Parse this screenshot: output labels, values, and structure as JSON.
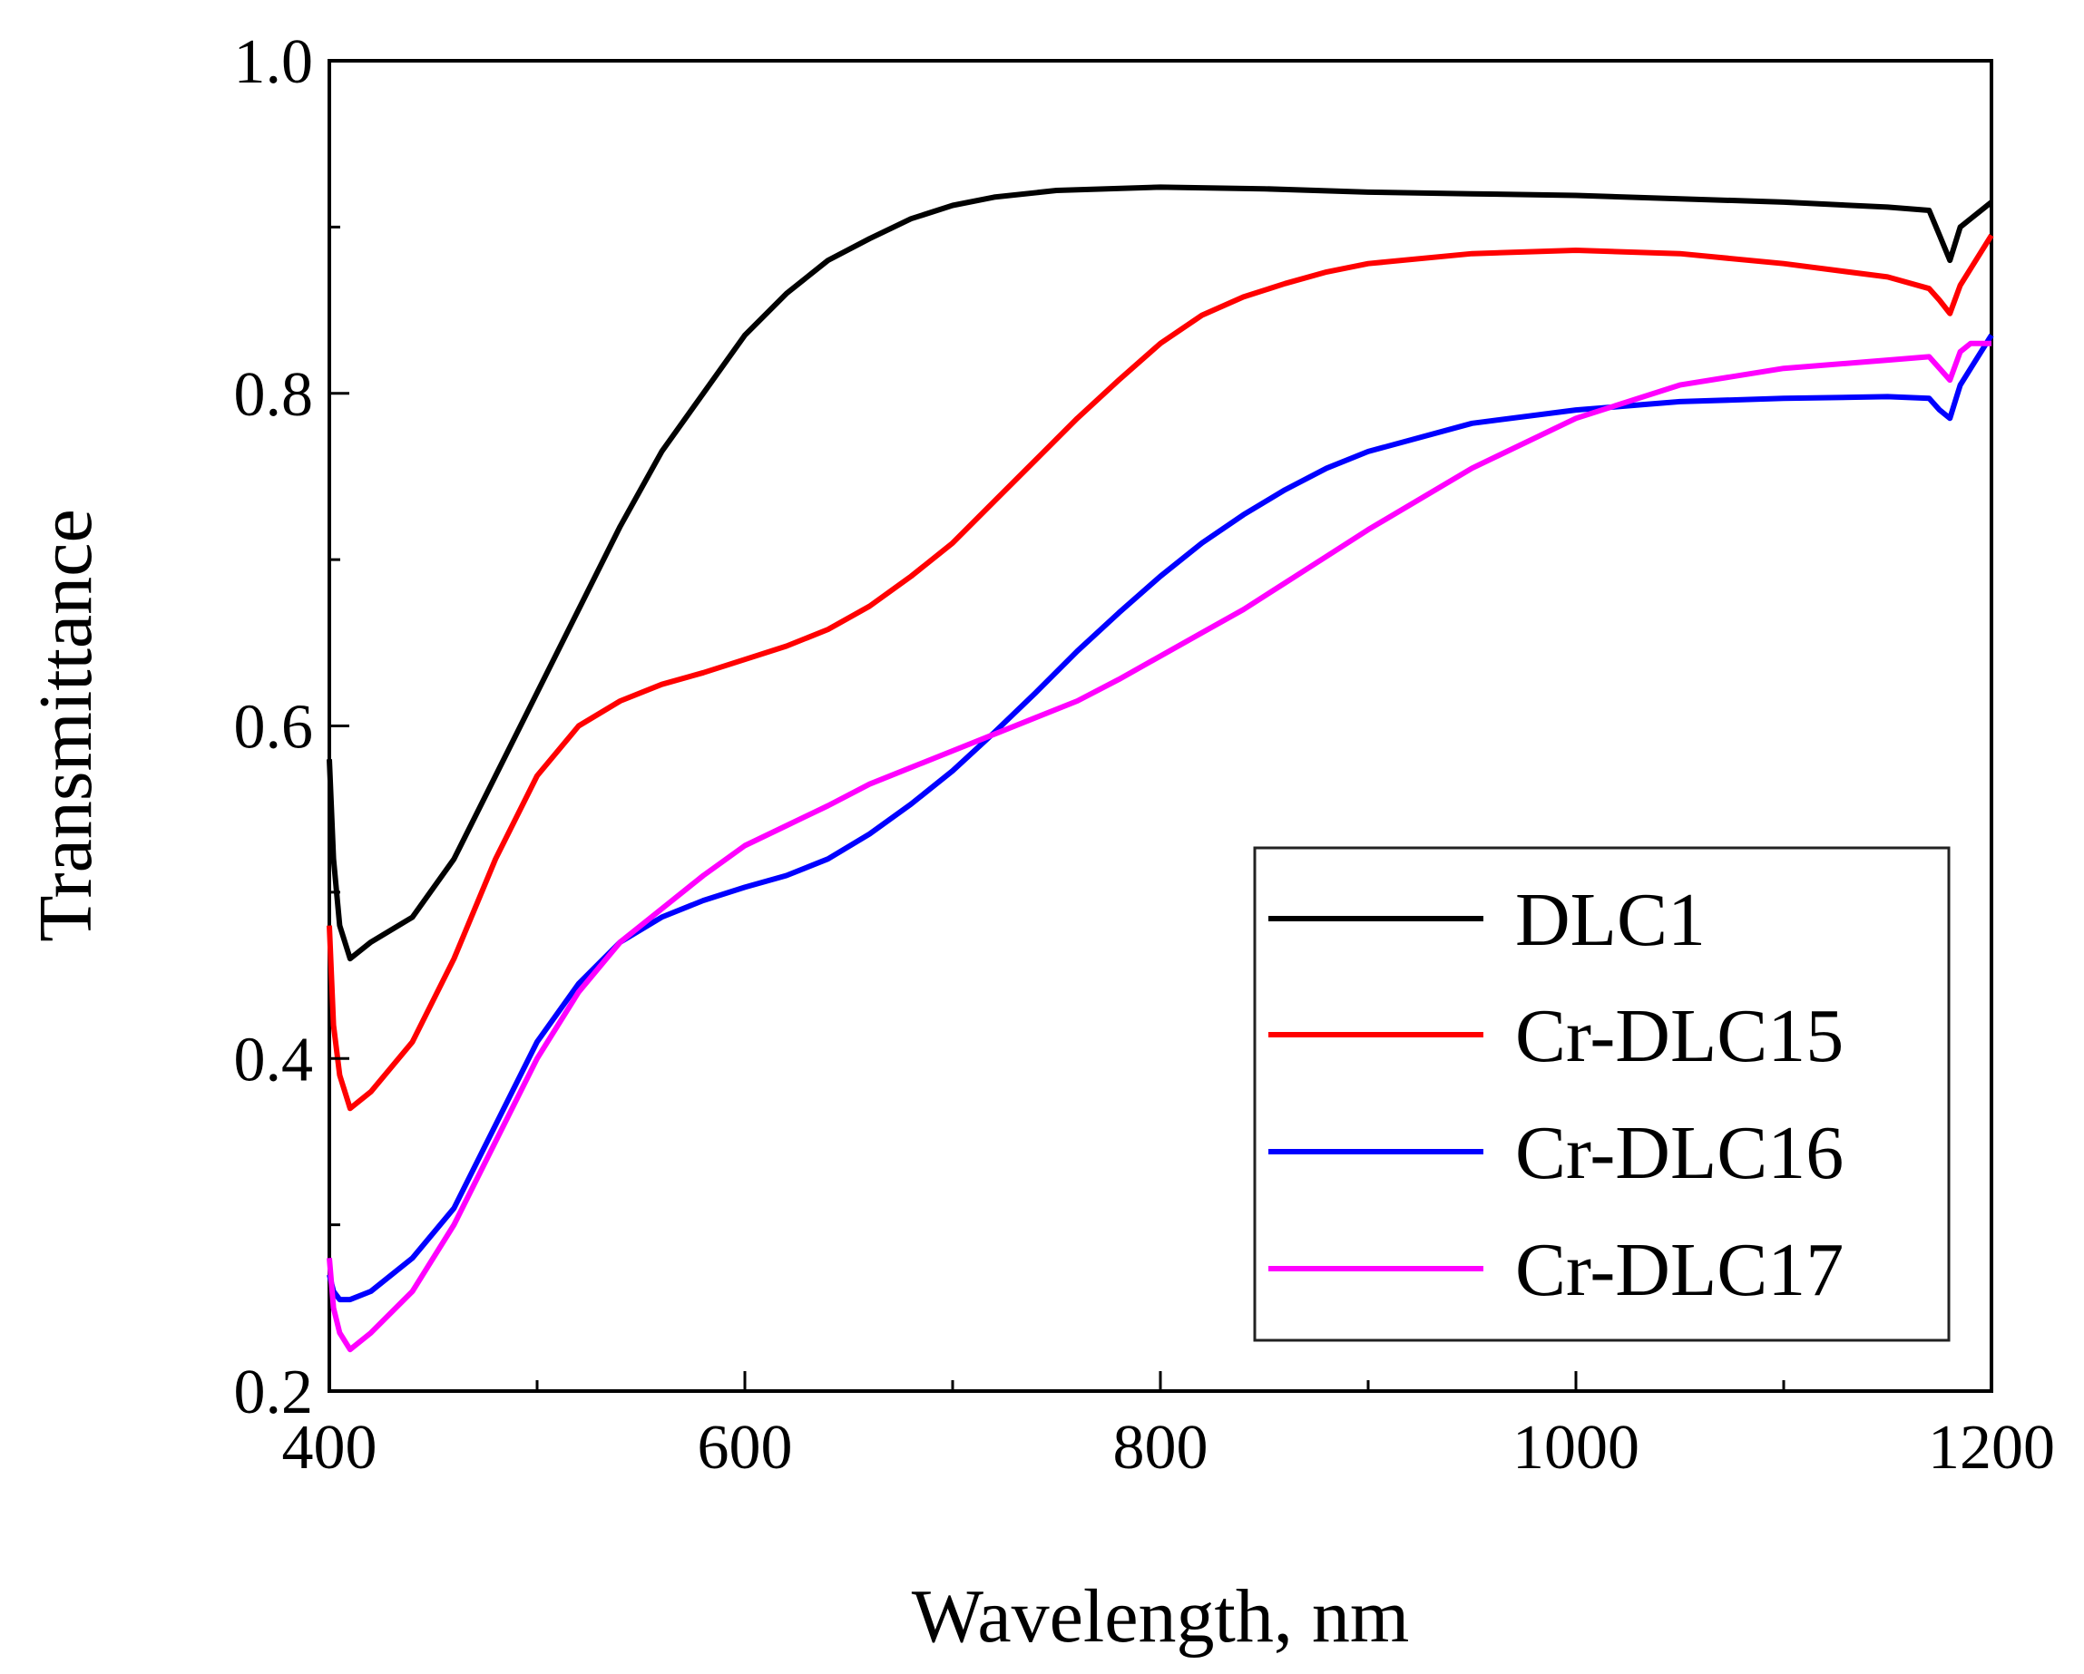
{
  "chart_data": {
    "type": "line",
    "xlabel": "Wavelength, nm",
    "ylabel": "Transmittance",
    "xlim": [
      400,
      1200
    ],
    "ylim": [
      0.2,
      1.0
    ],
    "xticks": [
      "400",
      "600",
      "800",
      "1000",
      "1200"
    ],
    "yticks": [
      "0.2",
      "0.4",
      "0.6",
      "0.8",
      "1.0"
    ],
    "grid": false,
    "legend_position": "bottom-right",
    "series": [
      {
        "name": "DLC1",
        "color": "#000000",
        "points": [
          [
            400,
            0.58
          ],
          [
            402,
            0.52
          ],
          [
            405,
            0.48
          ],
          [
            410,
            0.46
          ],
          [
            420,
            0.47
          ],
          [
            440,
            0.485
          ],
          [
            460,
            0.52
          ],
          [
            480,
            0.57
          ],
          [
            500,
            0.62
          ],
          [
            520,
            0.67
          ],
          [
            540,
            0.72
          ],
          [
            560,
            0.765
          ],
          [
            580,
            0.8
          ],
          [
            600,
            0.835
          ],
          [
            620,
            0.86
          ],
          [
            640,
            0.88
          ],
          [
            660,
            0.893
          ],
          [
            680,
            0.905
          ],
          [
            700,
            0.913
          ],
          [
            720,
            0.918
          ],
          [
            750,
            0.922
          ],
          [
            800,
            0.924
          ],
          [
            850,
            0.923
          ],
          [
            900,
            0.921
          ],
          [
            950,
            0.92
          ],
          [
            1000,
            0.919
          ],
          [
            1050,
            0.917
          ],
          [
            1100,
            0.915
          ],
          [
            1150,
            0.912
          ],
          [
            1170,
            0.91
          ],
          [
            1175,
            0.895
          ],
          [
            1180,
            0.88
          ],
          [
            1185,
            0.9
          ],
          [
            1190,
            0.905
          ],
          [
            1200,
            0.915
          ]
        ]
      },
      {
        "name": "Cr-DLC15",
        "color": "#ff0000",
        "points": [
          [
            400,
            0.48
          ],
          [
            402,
            0.42
          ],
          [
            405,
            0.39
          ],
          [
            410,
            0.37
          ],
          [
            420,
            0.38
          ],
          [
            440,
            0.41
          ],
          [
            460,
            0.46
          ],
          [
            480,
            0.52
          ],
          [
            500,
            0.57
          ],
          [
            520,
            0.6
          ],
          [
            540,
            0.615
          ],
          [
            560,
            0.625
          ],
          [
            580,
            0.632
          ],
          [
            600,
            0.64
          ],
          [
            620,
            0.648
          ],
          [
            640,
            0.658
          ],
          [
            660,
            0.672
          ],
          [
            680,
            0.69
          ],
          [
            700,
            0.71
          ],
          [
            720,
            0.735
          ],
          [
            740,
            0.76
          ],
          [
            760,
            0.785
          ],
          [
            780,
            0.808
          ],
          [
            800,
            0.83
          ],
          [
            820,
            0.847
          ],
          [
            840,
            0.858
          ],
          [
            860,
            0.866
          ],
          [
            880,
            0.873
          ],
          [
            900,
            0.878
          ],
          [
            950,
            0.884
          ],
          [
            1000,
            0.886
          ],
          [
            1050,
            0.884
          ],
          [
            1100,
            0.878
          ],
          [
            1150,
            0.87
          ],
          [
            1170,
            0.863
          ],
          [
            1175,
            0.856
          ],
          [
            1180,
            0.848
          ],
          [
            1185,
            0.865
          ],
          [
            1190,
            0.875
          ],
          [
            1200,
            0.895
          ]
        ]
      },
      {
        "name": "Cr-DLC16",
        "color": "#0000ff",
        "points": [
          [
            400,
            0.27
          ],
          [
            402,
            0.26
          ],
          [
            405,
            0.255
          ],
          [
            410,
            0.255
          ],
          [
            420,
            0.26
          ],
          [
            440,
            0.28
          ],
          [
            460,
            0.31
          ],
          [
            480,
            0.36
          ],
          [
            500,
            0.41
          ],
          [
            520,
            0.445
          ],
          [
            540,
            0.47
          ],
          [
            560,
            0.485
          ],
          [
            580,
            0.495
          ],
          [
            600,
            0.503
          ],
          [
            620,
            0.51
          ],
          [
            640,
            0.52
          ],
          [
            660,
            0.535
          ],
          [
            680,
            0.553
          ],
          [
            700,
            0.573
          ],
          [
            720,
            0.596
          ],
          [
            740,
            0.62
          ],
          [
            760,
            0.645
          ],
          [
            780,
            0.668
          ],
          [
            800,
            0.69
          ],
          [
            820,
            0.71
          ],
          [
            840,
            0.727
          ],
          [
            860,
            0.742
          ],
          [
            880,
            0.755
          ],
          [
            900,
            0.765
          ],
          [
            950,
            0.782
          ],
          [
            1000,
            0.79
          ],
          [
            1050,
            0.795
          ],
          [
            1100,
            0.797
          ],
          [
            1150,
            0.798
          ],
          [
            1170,
            0.797
          ],
          [
            1175,
            0.79
          ],
          [
            1180,
            0.785
          ],
          [
            1185,
            0.805
          ],
          [
            1190,
            0.815
          ],
          [
            1200,
            0.835
          ]
        ]
      },
      {
        "name": "Cr-DLC17",
        "color": "#ff00ff",
        "points": [
          [
            400,
            0.28
          ],
          [
            402,
            0.25
          ],
          [
            405,
            0.235
          ],
          [
            410,
            0.225
          ],
          [
            420,
            0.235
          ],
          [
            440,
            0.26
          ],
          [
            460,
            0.3
          ],
          [
            480,
            0.35
          ],
          [
            500,
            0.4
          ],
          [
            520,
            0.44
          ],
          [
            540,
            0.47
          ],
          [
            560,
            0.49
          ],
          [
            580,
            0.51
          ],
          [
            600,
            0.528
          ],
          [
            620,
            0.54
          ],
          [
            640,
            0.552
          ],
          [
            660,
            0.565
          ],
          [
            680,
            0.575
          ],
          [
            700,
            0.585
          ],
          [
            720,
            0.595
          ],
          [
            740,
            0.605
          ],
          [
            760,
            0.615
          ],
          [
            780,
            0.628
          ],
          [
            800,
            0.642
          ],
          [
            820,
            0.656
          ],
          [
            840,
            0.67
          ],
          [
            860,
            0.686
          ],
          [
            880,
            0.702
          ],
          [
            900,
            0.718
          ],
          [
            950,
            0.755
          ],
          [
            1000,
            0.785
          ],
          [
            1050,
            0.805
          ],
          [
            1100,
            0.815
          ],
          [
            1150,
            0.82
          ],
          [
            1170,
            0.822
          ],
          [
            1175,
            0.815
          ],
          [
            1180,
            0.808
          ],
          [
            1185,
            0.825
          ],
          [
            1190,
            0.83
          ],
          [
            1200,
            0.83
          ]
        ]
      }
    ]
  }
}
